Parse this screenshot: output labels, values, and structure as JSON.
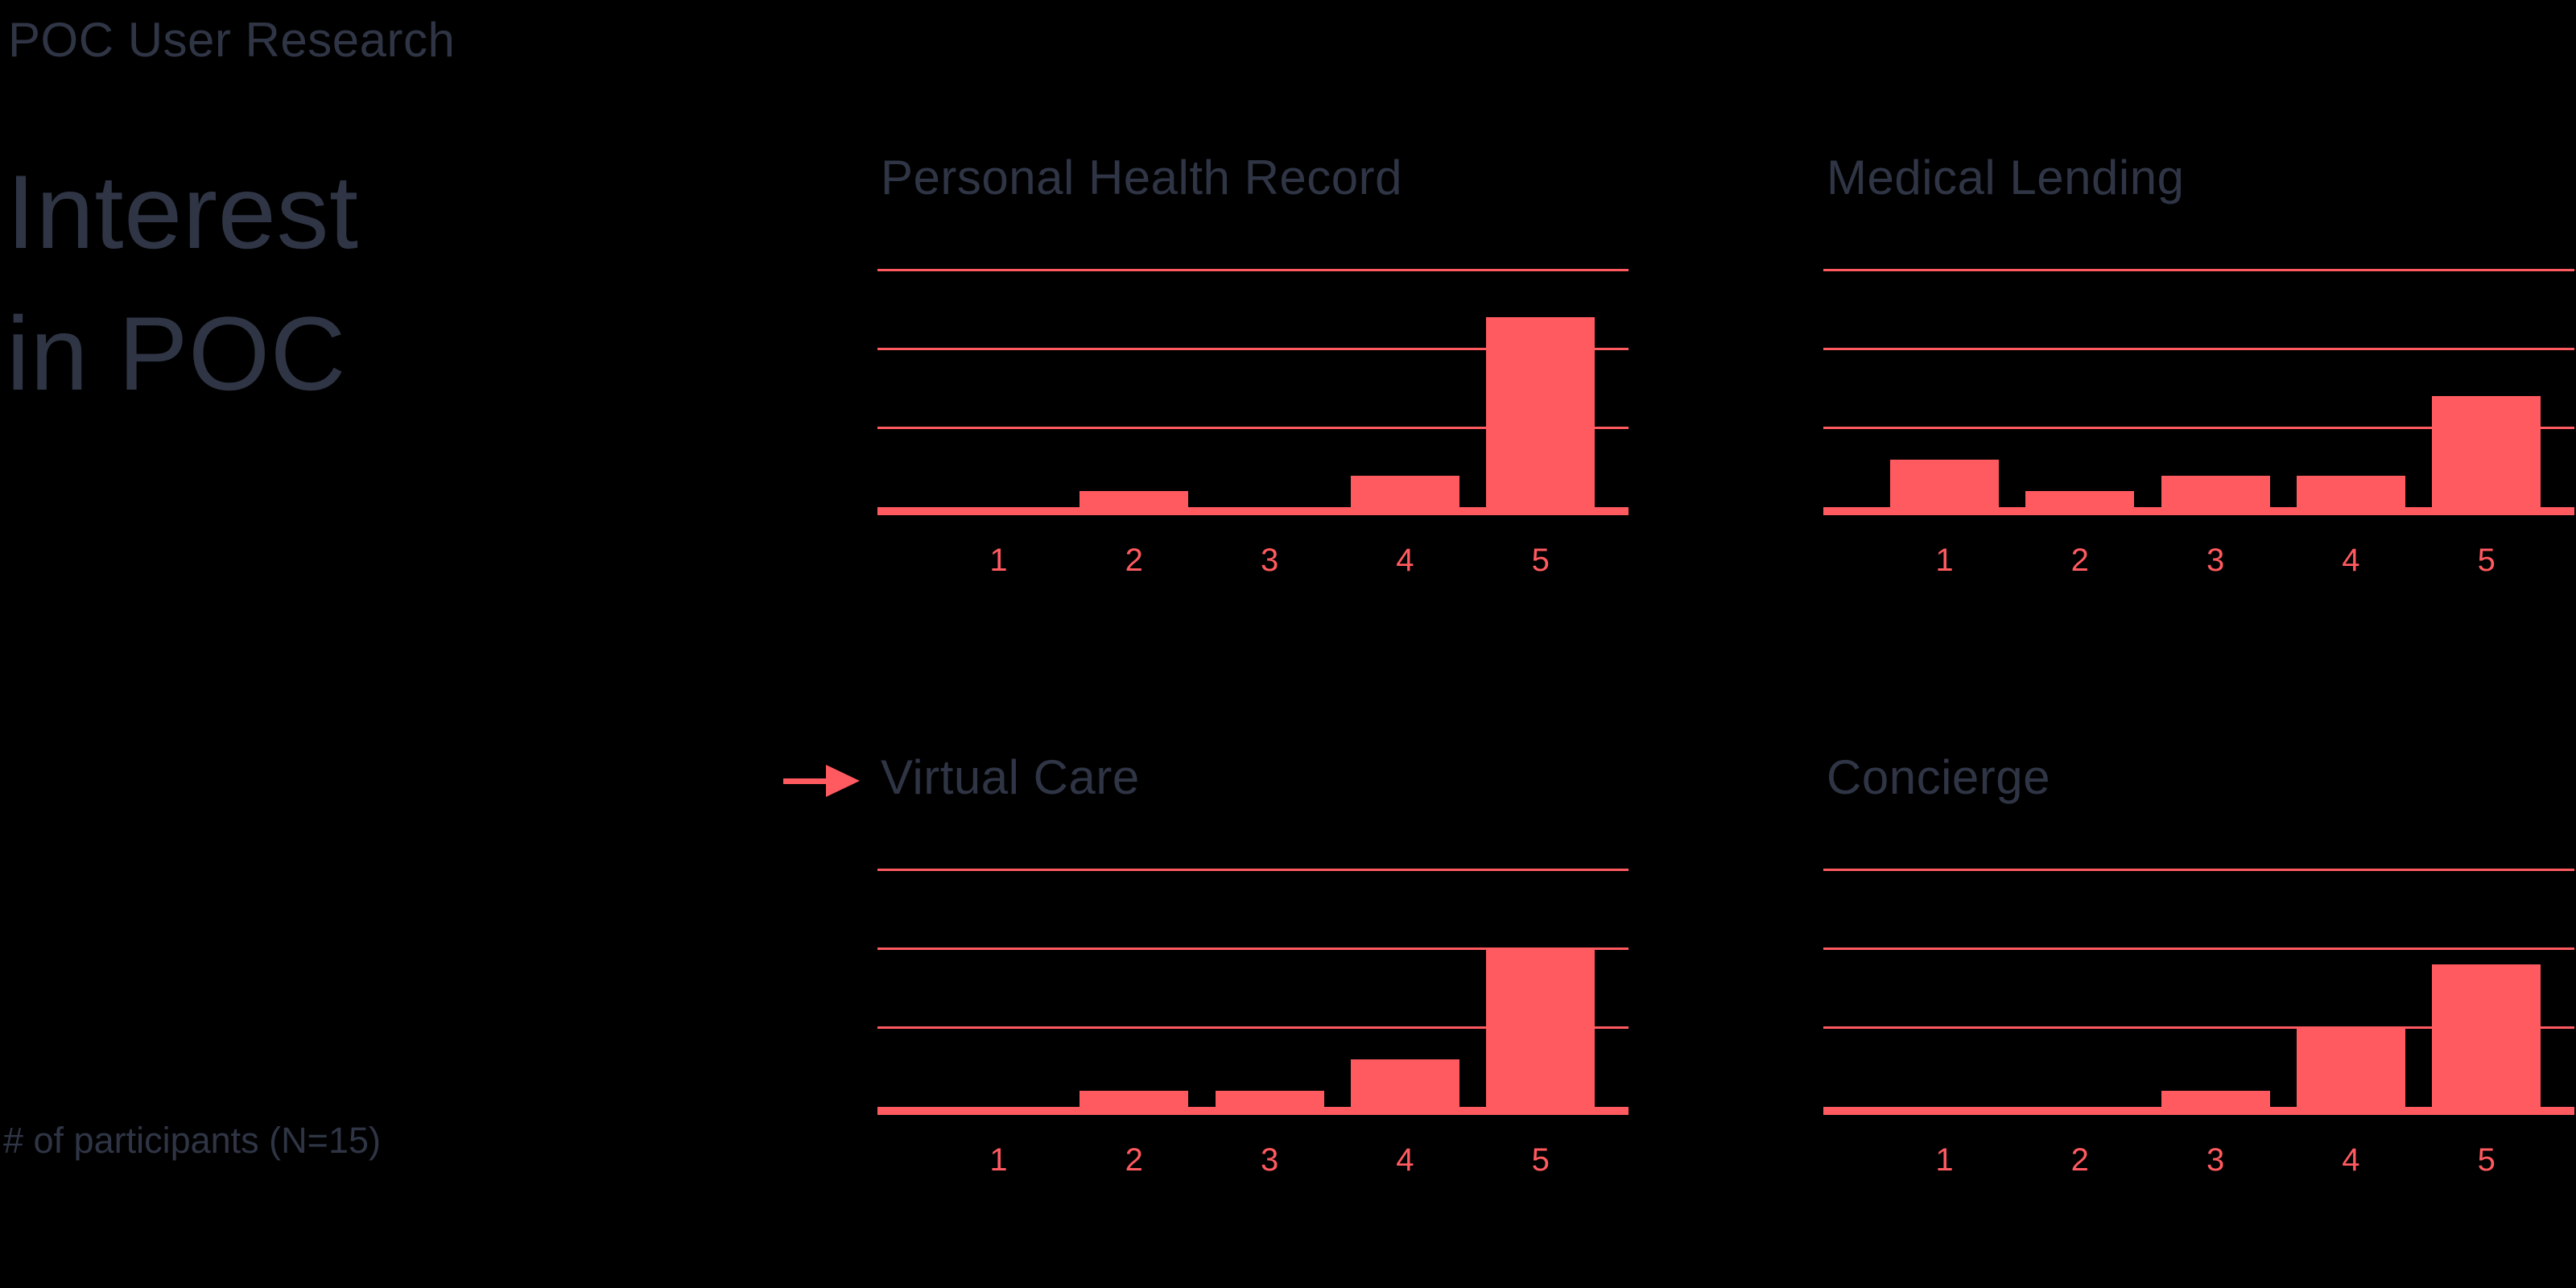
{
  "page": {
    "eyebrow": "POC User Research",
    "heading_line1": "Interest",
    "heading_line2": "in POC",
    "footnote": "# of participants (N=15)"
  },
  "colors": {
    "background": "#000000",
    "ink": "#2F3545",
    "accent": "#FF5A5F"
  },
  "chart_data": [
    {
      "type": "bar",
      "title": "Personal Health Record",
      "categories": [
        "1",
        "2",
        "3",
        "4",
        "5"
      ],
      "values": [
        0,
        1,
        0,
        2,
        12
      ],
      "ylim": [
        0,
        15
      ],
      "gridline_values": [
        5,
        10,
        15
      ],
      "grid": true,
      "legend": false,
      "highlighted": false
    },
    {
      "type": "bar",
      "title": "Medical Lending",
      "categories": [
        "1",
        "2",
        "3",
        "4",
        "5"
      ],
      "values": [
        3,
        1,
        2,
        2,
        7
      ],
      "ylim": [
        0,
        15
      ],
      "gridline_values": [
        5,
        10,
        15
      ],
      "grid": true,
      "legend": false,
      "highlighted": false
    },
    {
      "type": "bar",
      "title": "Virtual Care",
      "categories": [
        "1",
        "2",
        "3",
        "4",
        "5"
      ],
      "values": [
        0,
        1,
        1,
        3,
        10
      ],
      "ylim": [
        0,
        15
      ],
      "gridline_values": [
        5,
        10,
        15
      ],
      "grid": true,
      "legend": false,
      "highlighted": true
    },
    {
      "type": "bar",
      "title": "Concierge",
      "categories": [
        "1",
        "2",
        "3",
        "4",
        "5"
      ],
      "values": [
        0,
        0,
        1,
        5,
        9
      ],
      "ylim": [
        0,
        15
      ],
      "gridline_values": [
        5,
        10,
        15
      ],
      "grid": true,
      "legend": false,
      "highlighted": false
    }
  ]
}
